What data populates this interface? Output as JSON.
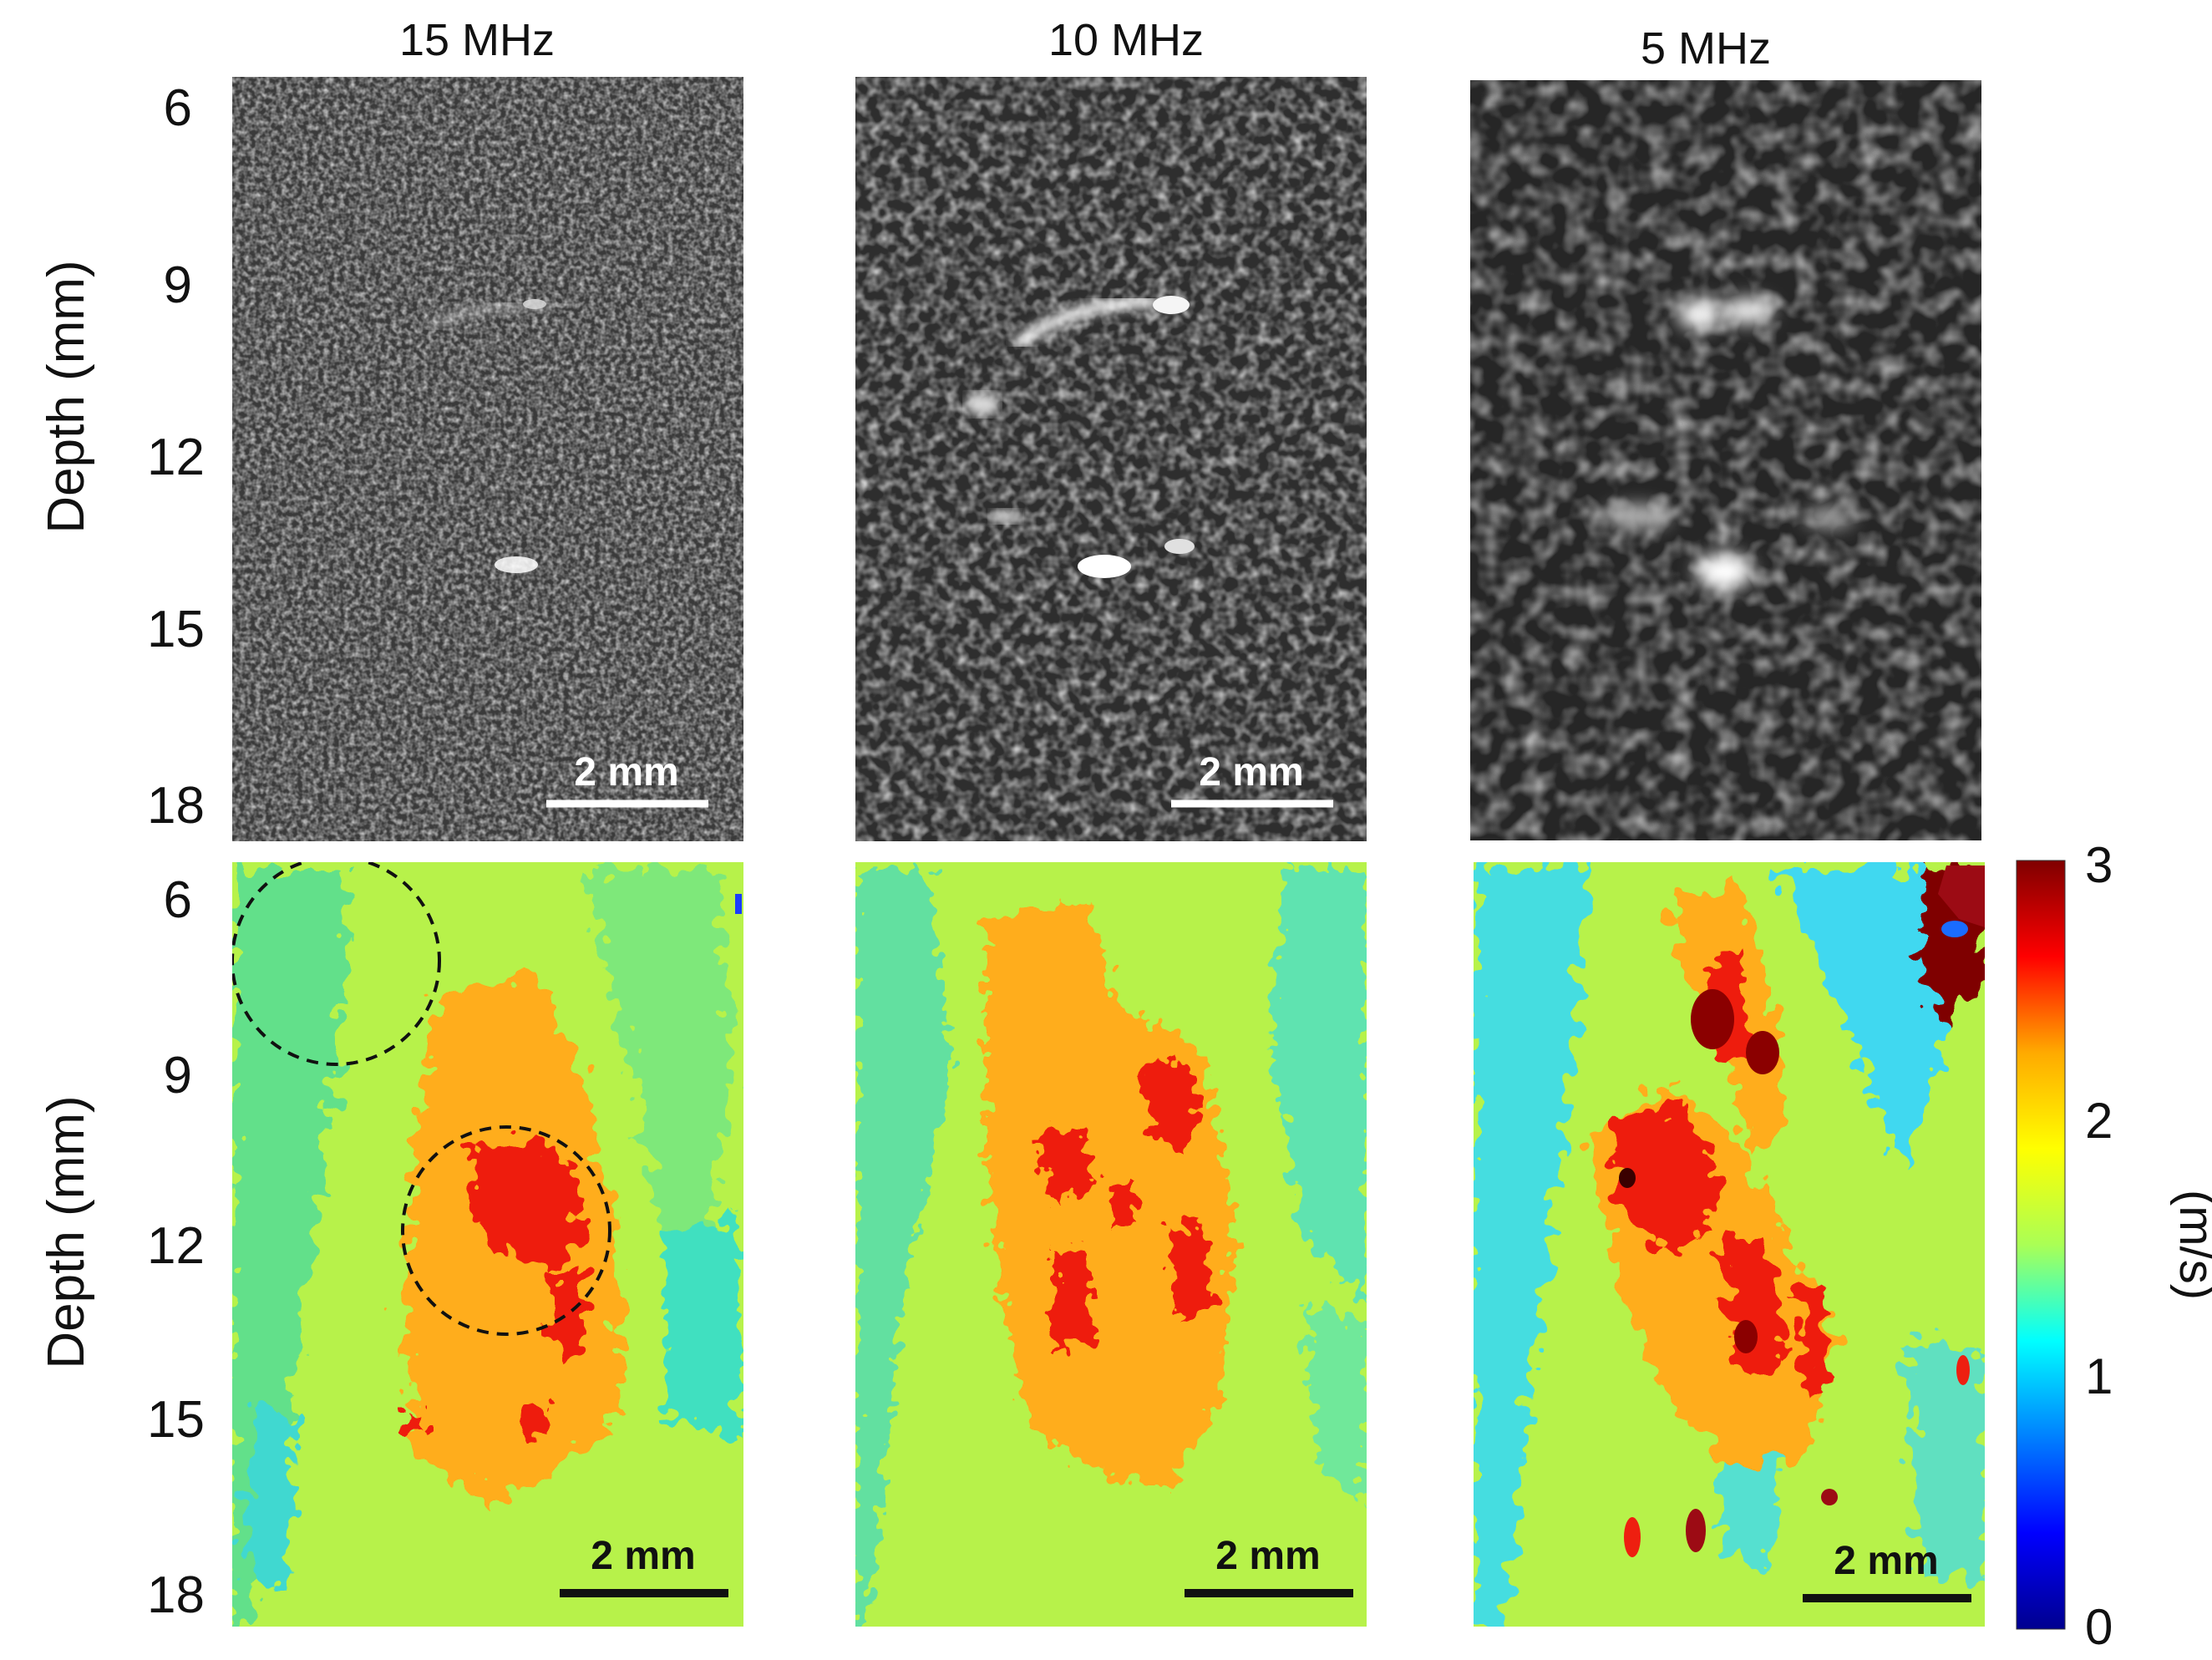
{
  "columns": [
    {
      "title": "15 MHz"
    },
    {
      "title": "10 MHz"
    },
    {
      "title": "5 MHz"
    }
  ],
  "rows": [
    {
      "axis_label": "Depth (mm)",
      "ticks": [
        "6",
        "9",
        "12",
        "15",
        "18"
      ]
    },
    {
      "axis_label": "Depth (mm)",
      "ticks": [
        "6",
        "9",
        "12",
        "15",
        "18"
      ]
    }
  ],
  "scale_bar": {
    "label": "2 mm"
  },
  "colorbar": {
    "ticks": [
      "3",
      "2",
      "1",
      "0"
    ],
    "unit": "(m/s)",
    "colors": [
      "#7f0000",
      "#ff0000",
      "#ffaa00",
      "#ffff00",
      "#aaff55",
      "#00ffff",
      "#0080ff",
      "#0000ff",
      "#00008f"
    ]
  },
  "annotations": {
    "dashed_circles": "two dashed circles on the 15 MHz shear-wave-speed map"
  }
}
